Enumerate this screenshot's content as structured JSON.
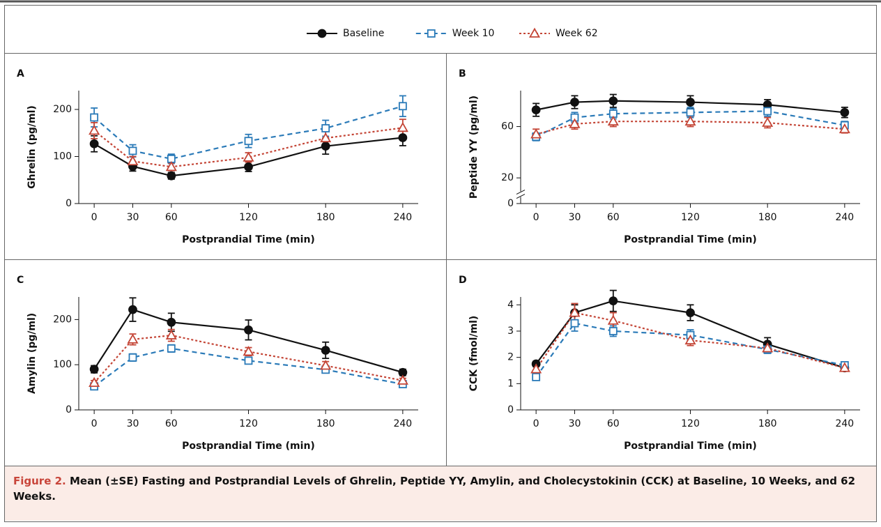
{
  "legend": [
    {
      "name": "Baseline",
      "color": "#111111",
      "marker": "circle",
      "line_style": "solid"
    },
    {
      "name": "Week 10",
      "color": "#2a7ab8",
      "marker": "square",
      "line_style": "dashed"
    },
    {
      "name": "Week 62",
      "color": "#c44536",
      "marker": "triangle",
      "line_style": "dotted"
    }
  ],
  "chart_data": [
    {
      "type": "line",
      "panel": "A",
      "ylabel": "Ghrelin (pg/ml)",
      "xlabel": "Postprandial Time (min)",
      "x": [
        0,
        30,
        60,
        120,
        180,
        240
      ],
      "xlim": [
        -12,
        252
      ],
      "xticks": [
        0,
        30,
        60,
        120,
        180,
        240
      ],
      "ylim": [
        0,
        240
      ],
      "yticks": [
        0,
        100,
        200
      ],
      "series": [
        {
          "values": [
            127,
            79,
            59,
            78,
            122,
            140
          ],
          "errors": [
            17,
            10,
            7,
            10,
            17,
            17
          ]
        },
        {
          "values": [
            183,
            112,
            95,
            133,
            160,
            207
          ],
          "errors": [
            20,
            13,
            10,
            14,
            17,
            22
          ]
        },
        {
          "values": [
            155,
            90,
            78,
            98,
            139,
            161
          ],
          "errors": [
            17,
            10,
            8,
            10,
            15,
            18
          ]
        }
      ]
    },
    {
      "type": "line",
      "panel": "B",
      "ylabel": "Peptide YY (pg/ml)",
      "xlabel": "Postprandial Time (min)",
      "x": [
        0,
        30,
        60,
        120,
        180,
        240
      ],
      "xlim": [
        -12,
        252
      ],
      "xticks": [
        0,
        30,
        60,
        120,
        180,
        240
      ],
      "ylim": [
        0,
        88
      ],
      "yticks": [
        0,
        20,
        60
      ],
      "axis_break": true,
      "series": [
        {
          "values": [
            73,
            79,
            80,
            79,
            77,
            71
          ],
          "errors": [
            5,
            5,
            5,
            5,
            4,
            4
          ]
        },
        {
          "values": [
            52,
            67,
            70,
            71,
            72,
            61
          ],
          "errors": [
            3,
            4,
            4,
            4,
            4,
            3
          ]
        },
        {
          "values": [
            54,
            62,
            64,
            64,
            63,
            58
          ],
          "errors": [
            4,
            4,
            4,
            4,
            4,
            3
          ]
        }
      ]
    },
    {
      "type": "line",
      "panel": "C",
      "ylabel": "Amylin (pg/ml)",
      "xlabel": "Postprandial Time (min)",
      "x": [
        0,
        30,
        60,
        120,
        180,
        240
      ],
      "xlim": [
        -12,
        252
      ],
      "xticks": [
        0,
        30,
        60,
        120,
        180,
        240
      ],
      "ylim": [
        0,
        250
      ],
      "yticks": [
        0,
        100,
        200
      ],
      "series": [
        {
          "values": [
            90,
            222,
            194,
            177,
            132,
            83
          ],
          "errors": [
            8,
            26,
            20,
            22,
            18,
            7
          ]
        },
        {
          "values": [
            52,
            116,
            136,
            109,
            89,
            57
          ],
          "errors": [
            5,
            8,
            8,
            7,
            6,
            5
          ]
        },
        {
          "values": [
            60,
            156,
            165,
            129,
            98,
            65
          ],
          "errors": [
            5,
            12,
            13,
            9,
            9,
            5
          ]
        }
      ]
    },
    {
      "type": "line",
      "panel": "D",
      "ylabel": "CCK (fmol/ml)",
      "xlabel": "Postprandial Time (min)",
      "x": [
        0,
        30,
        60,
        120,
        180,
        240
      ],
      "xlim": [
        -12,
        252
      ],
      "xticks": [
        0,
        30,
        60,
        120,
        180,
        240
      ],
      "ylim": [
        0,
        4.3
      ],
      "yticks": [
        0,
        1,
        2,
        3,
        4
      ],
      "series": [
        {
          "values": [
            1.75,
            3.7,
            4.15,
            3.7,
            2.5,
            1.6
          ],
          "errors": [
            0.1,
            0.3,
            0.4,
            0.3,
            0.25,
            0.1
          ]
        },
        {
          "values": [
            1.25,
            3.3,
            3.0,
            2.85,
            2.3,
            1.7
          ],
          "errors": [
            0.1,
            0.3,
            0.2,
            0.2,
            0.15,
            0.1
          ]
        },
        {
          "values": [
            1.55,
            3.7,
            3.4,
            2.65,
            2.35,
            1.6
          ],
          "errors": [
            0.15,
            0.35,
            0.3,
            0.2,
            0.15,
            0.1
          ]
        }
      ]
    }
  ],
  "caption": {
    "label": "Figure 2.",
    "text": "Mean (±SE) Fasting and Postprandial Levels of Ghrelin, Peptide YY, Amylin, and Cholecystokinin (CCK) at Baseline, 10 Weeks, and 62 Weeks."
  }
}
